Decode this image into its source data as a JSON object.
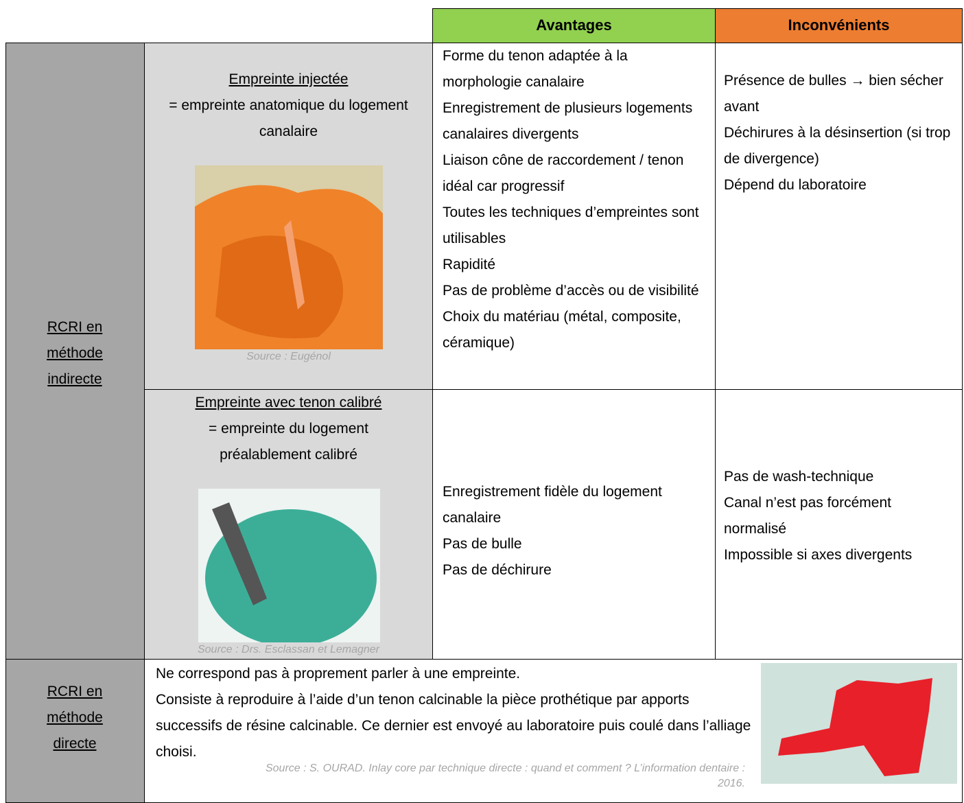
{
  "header": {
    "avantages": "Avantages",
    "inconvenients": "Inconvénients"
  },
  "indirect": {
    "method": "RCRI en méthode indirecte",
    "rows": [
      {
        "title": "Empreinte injectée",
        "description": "= empreinte anatomique du logement canalaire",
        "source": "Source : Eugénol",
        "advantages": [
          "Forme du tenon adaptée à la morphologie canalaire",
          "Enregistrement de plusieurs logements canalaires divergents",
          "Liaison cône de raccordement / tenon idéal car progressif",
          "Toutes les techniques d’empreintes sont utilisables",
          "Rapidité",
          "Pas de problème d’accès ou de visibilité",
          "Choix du matériau (métal, composite, céramique)"
        ],
        "disadvantages": [
          "Présence de bulles → bien sécher avant",
          "Déchirures à la désinsertion (si trop de divergence)",
          "Dépend du laboratoire"
        ]
      },
      {
        "title": "Empreinte avec tenon calibré",
        "description": "= empreinte du logement préalablement calibré",
        "source": "Source : Drs. Esclassan et Lemagner",
        "advantages": [
          "Enregistrement fidèle du logement canalaire",
          "Pas de bulle",
          "Pas de déchirure"
        ],
        "disadvantages": [
          "Pas de wash-technique",
          "Canal n’est pas forcément normalisé",
          "Impossible si axes divergents"
        ]
      }
    ]
  },
  "direct": {
    "method": "RCRI en méthode directe",
    "text": [
      "Ne correspond pas à proprement parler à une empreinte.",
      "Consiste à reproduire à l’aide d’un tenon calcinable la pièce prothétique par apports successifs de résine calcinable. Ce dernier est envoyé au laboratoire puis coulé dans l’alliage choisi."
    ],
    "source": "Source : S. OURAD. Inlay core par technique directe : quand et comment ? L’information dentaire : 2016."
  }
}
